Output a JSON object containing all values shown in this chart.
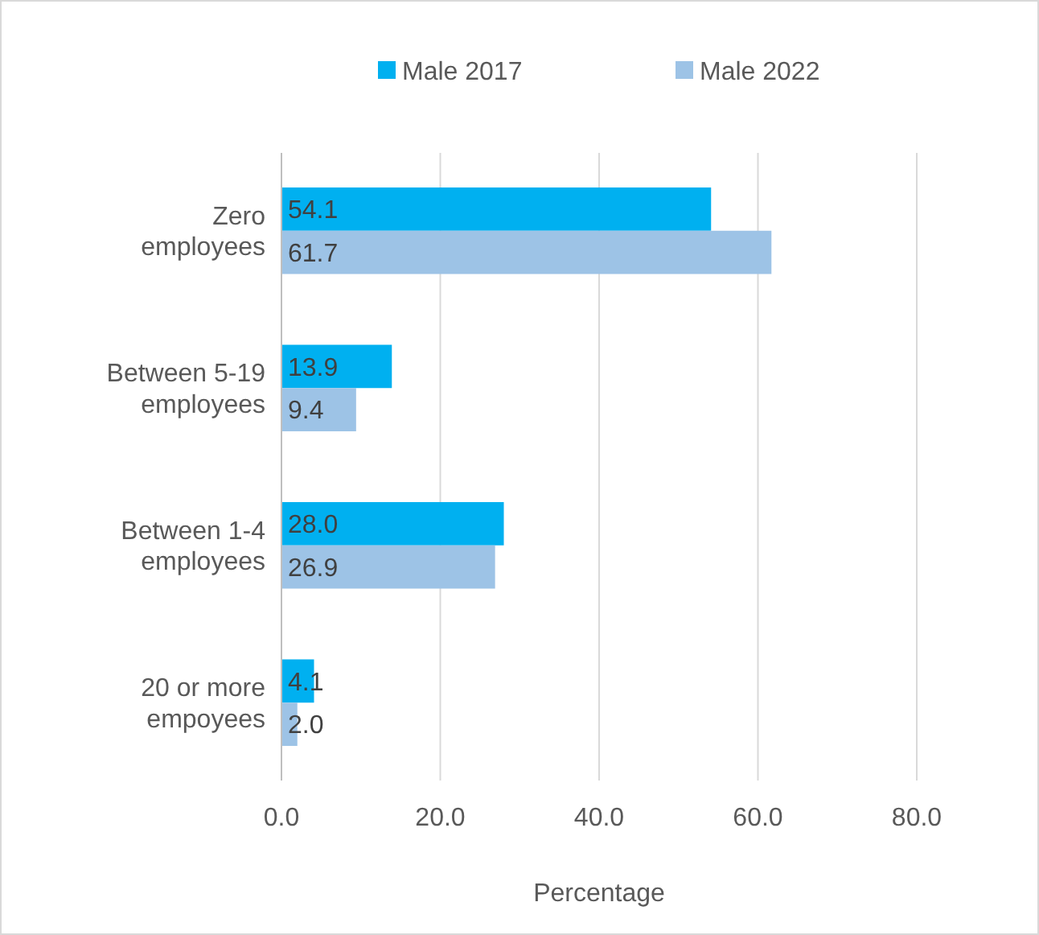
{
  "chart_data": {
    "type": "bar",
    "orientation": "horizontal",
    "categories": [
      "Zero employees",
      "Between 5-19 employees",
      "Between 1-4 employees",
      "20 or more empoyees"
    ],
    "series": [
      {
        "name": "Male 2017",
        "color": "#00b0f0",
        "values": [
          54.1,
          13.9,
          28.0,
          4.1
        ],
        "value_labels": [
          "54.1",
          "13.9",
          "28.0",
          "4.1"
        ]
      },
      {
        "name": "Male 2022",
        "color": "#9dc3e6",
        "values": [
          61.7,
          9.4,
          26.9,
          2.0
        ],
        "value_labels": [
          "61.7",
          "9.4",
          "26.9",
          "2.0"
        ]
      }
    ],
    "xlim": [
      0,
      80
    ],
    "xticks": [
      {
        "value": 0,
        "label": "0.0"
      },
      {
        "value": 20,
        "label": "20.0"
      },
      {
        "value": 40,
        "label": "40.0"
      },
      {
        "value": 60,
        "label": "60.0"
      },
      {
        "value": 80,
        "label": "80.0"
      }
    ],
    "xlabel": "Percentage",
    "grid": "x",
    "legend": "top"
  }
}
